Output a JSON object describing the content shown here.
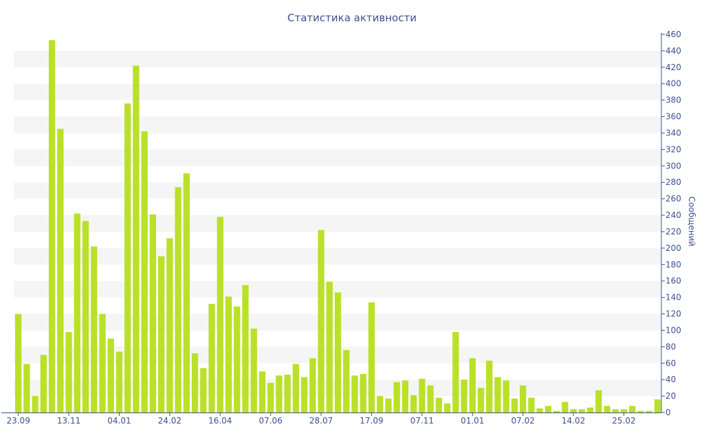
{
  "chart_data": {
    "type": "bar",
    "title": "Статистика активности",
    "ylabel": "Сообщений",
    "xlabel": "",
    "ylim": [
      0,
      460
    ],
    "y_ticks": [
      0,
      20,
      40,
      60,
      80,
      100,
      120,
      140,
      160,
      180,
      200,
      220,
      240,
      260,
      280,
      300,
      320,
      340,
      360,
      380,
      400,
      420,
      440,
      460
    ],
    "y_axis_side": "right",
    "grid": "horizontal alternating bands",
    "x_tick_labels": [
      {
        "index": 0,
        "label": "23.09"
      },
      {
        "index": 6,
        "label": "13.11"
      },
      {
        "index": 12,
        "label": "04.01"
      },
      {
        "index": 18,
        "label": "24.02"
      },
      {
        "index": 24,
        "label": "16.04"
      },
      {
        "index": 30,
        "label": "07.06"
      },
      {
        "index": 36,
        "label": "28.07"
      },
      {
        "index": 42,
        "label": "17.09"
      },
      {
        "index": 48,
        "label": "07.11"
      },
      {
        "index": 54,
        "label": "01.01"
      },
      {
        "index": 60,
        "label": "07.02"
      },
      {
        "index": 66,
        "label": "14.02"
      },
      {
        "index": 72,
        "label": "25.02"
      }
    ],
    "values": [
      120,
      59,
      20,
      70,
      453,
      345,
      98,
      242,
      233,
      202,
      120,
      90,
      74,
      376,
      422,
      342,
      241,
      190,
      212,
      274,
      291,
      72,
      54,
      132,
      238,
      141,
      129,
      155,
      102,
      50,
      36,
      45,
      46,
      59,
      43,
      66,
      222,
      159,
      146,
      76,
      45,
      47,
      134,
      20,
      17,
      37,
      39,
      21,
      41,
      33,
      18,
      11,
      98,
      40,
      66,
      30,
      63,
      43,
      39,
      17,
      33,
      18,
      5,
      8,
      2,
      13,
      4,
      4,
      6,
      27,
      8,
      4,
      4,
      8,
      2,
      2,
      16
    ],
    "colors": {
      "bar": "#b9e128",
      "band": "#f5f5f5",
      "text": "#3d4f8f",
      "axis": "#3d4f8f"
    }
  }
}
